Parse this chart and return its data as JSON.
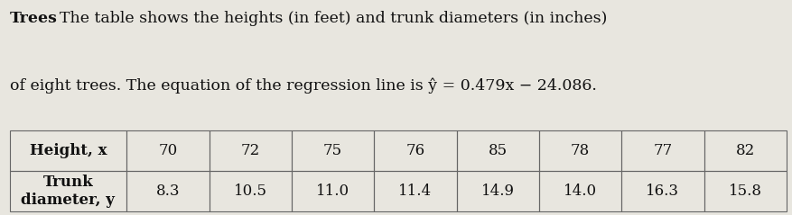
{
  "title_bold": "Trees",
  "description_line1": "The table shows the heights (in feet) and trunk diameters (in inches)",
  "description_line2": "of eight trees. The equation of the regression line is ŷ = 0.479x − 24.086.",
  "row1_label": "Height, x",
  "row2_label": "Trunk\ndiameter, y",
  "heights": [
    "70",
    "72",
    "75",
    "76",
    "85",
    "78",
    "77",
    "82"
  ],
  "diameters": [
    "8.3",
    "10.5",
    "11.0",
    "11.4",
    "14.9",
    "14.0",
    "16.3",
    "15.8"
  ],
  "bg_color": "#e8e6df",
  "text_color": "#111111",
  "border_color": "#666666",
  "font_size_text": 12.5,
  "font_size_table": 12.0
}
